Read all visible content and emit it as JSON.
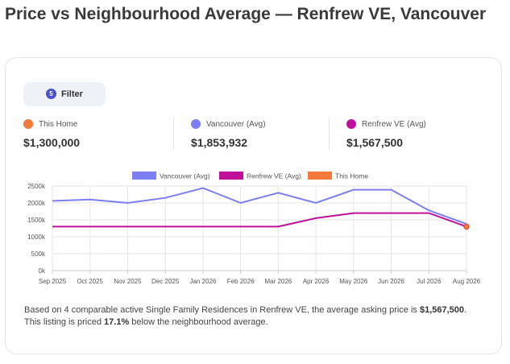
{
  "page": {
    "title": "Price vs Neighbourhood Average — Renfrew VE, Vancouver"
  },
  "filter": {
    "badge": "5",
    "label": "Filter"
  },
  "stats": [
    {
      "label": "This Home",
      "value": "$1,300,000",
      "color": "#f47a3c"
    },
    {
      "label": "Vancouver (Avg)",
      "value": "$1,853,932",
      "color": "#7b7ff2"
    },
    {
      "label": "Renfrew VE (Avg)",
      "value": "$1,567,500",
      "color": "#c0109a"
    }
  ],
  "chart_data": {
    "type": "line",
    "categories": [
      "Sep 2025",
      "Oct 2025",
      "Nov 2025",
      "Dec 2025",
      "Jan 2026",
      "Feb 2026",
      "Mar 2026",
      "Apr 2026",
      "May 2026",
      "Jun 2026",
      "Jul 2026",
      "Aug 2026"
    ],
    "series": [
      {
        "name": "Vancouver (Avg)",
        "color": "#7b7ff2",
        "values": [
          2060000,
          2100000,
          2000000,
          2150000,
          2440000,
          2000000,
          2300000,
          2000000,
          2390000,
          2390000,
          1780000,
          1380000
        ]
      },
      {
        "name": "Renfrew VE (Avg)",
        "color": "#c0109a",
        "values": [
          1300000,
          1300000,
          1300000,
          1300000,
          1300000,
          1300000,
          1300000,
          1550000,
          1700000,
          1700000,
          1700000,
          1300000
        ]
      },
      {
        "name": "This Home",
        "color": "#f47a3c",
        "values": [
          null,
          null,
          null,
          null,
          null,
          null,
          null,
          null,
          null,
          null,
          null,
          1300000
        ]
      }
    ],
    "yticks": [
      "0k",
      "500k",
      "1000k",
      "1500k",
      "2000k",
      "2500k"
    ],
    "ylim": [
      0,
      2500000
    ],
    "legend_position": "top-center",
    "grid": true
  },
  "note": {
    "p1": "Based on 4 comparable active Single Family Residences in Renfrew VE, the average asking price is ",
    "avg": "$1,567,500",
    "p2": ". This listing is priced ",
    "pct": "17.1%",
    "p3": " below the neighbourhood average."
  }
}
